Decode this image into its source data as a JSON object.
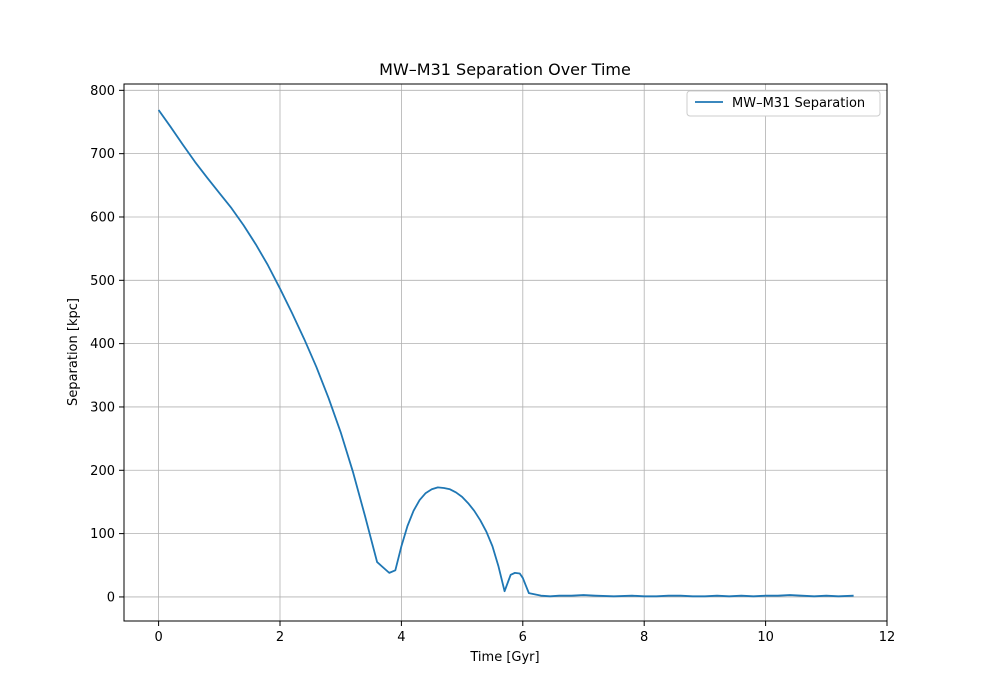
{
  "chart_data": {
    "type": "line",
    "title": "MW–M31 Separation Over Time",
    "xlabel": "Time [Gyr]",
    "ylabel": "Separation [kpc]",
    "xlim": [
      -0.57,
      12.0
    ],
    "ylim": [
      -38,
      810
    ],
    "xticks": [
      0,
      2,
      4,
      6,
      8,
      10,
      12
    ],
    "yticks": [
      0,
      100,
      200,
      300,
      400,
      500,
      600,
      700,
      800
    ],
    "grid": true,
    "legend_position": "top-right",
    "line_color": "#1f77b4",
    "series": [
      {
        "name": "MW–M31 Separation",
        "x": [
          0,
          0.2,
          0.4,
          0.6,
          0.8,
          1.0,
          1.2,
          1.4,
          1.6,
          1.8,
          2.0,
          2.2,
          2.4,
          2.6,
          2.8,
          3.0,
          3.2,
          3.4,
          3.6,
          3.8,
          3.9,
          4.0,
          4.1,
          4.2,
          4.3,
          4.4,
          4.5,
          4.6,
          4.7,
          4.8,
          4.9,
          5.0,
          5.1,
          5.2,
          5.3,
          5.4,
          5.5,
          5.6,
          5.7,
          5.8,
          5.87,
          5.95,
          6.0,
          6.05,
          6.1,
          6.15,
          6.2,
          6.3,
          6.45,
          6.6,
          6.8,
          7.0,
          7.2,
          7.5,
          7.8,
          8.0,
          8.2,
          8.4,
          8.6,
          8.8,
          9.0,
          9.2,
          9.4,
          9.6,
          9.8,
          10.0,
          10.2,
          10.4,
          10.6,
          10.8,
          11.0,
          11.2,
          11.45
        ],
        "values": [
          769,
          742,
          714,
          687,
          662,
          638,
          614,
          587,
          557,
          524,
          487,
          448,
          407,
          363,
          314,
          260,
          198,
          128,
          55,
          38,
          42,
          80,
          112,
          136,
          153,
          164,
          170,
          173,
          172,
          170,
          165,
          158,
          148,
          136,
          121,
          103,
          80,
          48,
          9,
          35,
          38,
          37,
          30,
          18,
          6,
          5,
          4,
          2,
          1,
          2,
          2,
          3,
          2,
          1,
          2,
          1,
          1,
          2,
          2,
          1,
          1,
          2,
          1,
          2,
          1,
          2,
          2,
          3,
          2,
          1,
          2,
          1,
          2
        ]
      }
    ]
  }
}
